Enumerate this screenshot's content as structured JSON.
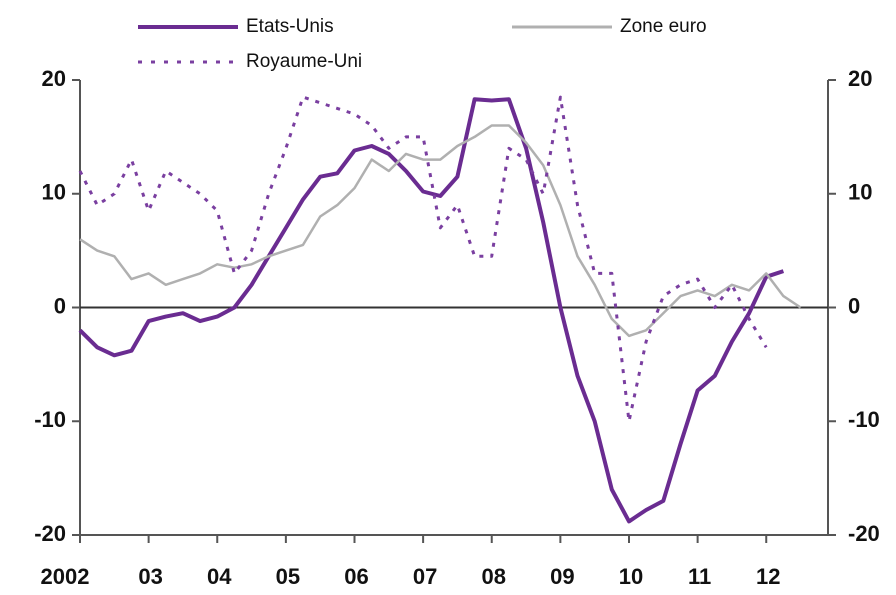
{
  "chart_data": {
    "type": "line",
    "xlim": [
      2002,
      2012.9
    ],
    "xticks": [
      {
        "value": 2002,
        "label": "2002"
      },
      {
        "value": 2003,
        "label": "03"
      },
      {
        "value": 2004,
        "label": "04"
      },
      {
        "value": 2005,
        "label": "05"
      },
      {
        "value": 2006,
        "label": "06"
      },
      {
        "value": 2007,
        "label": "07"
      },
      {
        "value": 2008,
        "label": "08"
      },
      {
        "value": 2009,
        "label": "09"
      },
      {
        "value": 2010,
        "label": "10"
      },
      {
        "value": 2011,
        "label": "11"
      },
      {
        "value": 2012,
        "label": "12"
      }
    ],
    "ylim": [
      -20,
      20
    ],
    "yticks": [
      -20,
      -10,
      0,
      10,
      20
    ],
    "y2lim": [
      -20,
      20
    ],
    "y2ticks": [
      -20,
      -10,
      0,
      10,
      20
    ],
    "series": [
      {
        "name": "Etats-Unis",
        "color": "#6a2c91",
        "style": "solid",
        "x": [
          2002,
          2002.25,
          2002.5,
          2002.75,
          2003,
          2003.25,
          2003.5,
          2003.75,
          2004,
          2004.25,
          2004.5,
          2004.75,
          2005,
          2005.25,
          2005.5,
          2005.75,
          2006,
          2006.25,
          2006.5,
          2006.75,
          2007,
          2007.25,
          2007.5,
          2007.75,
          2008,
          2008.25,
          2008.5,
          2008.75,
          2009,
          2009.25,
          2009.5,
          2009.75,
          2010,
          2010.25,
          2010.5,
          2010.75,
          2011,
          2011.25,
          2011.5,
          2011.75,
          2012,
          2012.25
        ],
        "values": [
          -2,
          -3.5,
          -4.2,
          -3.8,
          -1.2,
          -0.8,
          -0.5,
          -1.2,
          -0.8,
          0,
          2,
          4.5,
          7,
          9.5,
          11.5,
          11.8,
          13.8,
          14.2,
          13.5,
          12,
          10.2,
          9.8,
          11.5,
          18.3,
          18.2,
          18.3,
          14,
          7.5,
          0,
          -6,
          -10,
          -16,
          -18.8,
          -17.8,
          -17,
          -12,
          -7.3,
          -6,
          -3,
          -0.5,
          2.7,
          3.2
        ]
      },
      {
        "name": "Zone euro",
        "color": "#b0b0b0",
        "style": "solid",
        "x": [
          2002,
          2002.25,
          2002.5,
          2002.75,
          2003,
          2003.25,
          2003.5,
          2003.75,
          2004,
          2004.25,
          2004.5,
          2004.75,
          2005,
          2005.25,
          2005.5,
          2005.75,
          2006,
          2006.25,
          2006.5,
          2006.75,
          2007,
          2007.25,
          2007.5,
          2007.75,
          2008,
          2008.25,
          2008.5,
          2008.75,
          2009,
          2009.25,
          2009.5,
          2009.75,
          2010,
          2010.25,
          2010.5,
          2010.75,
          2011,
          2011.25,
          2011.5,
          2011.75,
          2012,
          2012.25,
          2012.5
        ],
        "values": [
          6,
          5,
          4.5,
          2.5,
          3,
          2,
          2.5,
          3,
          3.8,
          3.5,
          3.8,
          4.5,
          5,
          5.5,
          8,
          9,
          10.5,
          13,
          12,
          13.5,
          13,
          13,
          14.2,
          15,
          16,
          16,
          14.5,
          12.5,
          9,
          4.5,
          2,
          -1,
          -2.5,
          -2,
          -0.5,
          1,
          1.5,
          1,
          2,
          1.5,
          3,
          1,
          0
        ]
      },
      {
        "name": "Royaume-Uni",
        "color": "#7a3fa0",
        "style": "dotted",
        "x": [
          2002,
          2002.25,
          2002.5,
          2002.75,
          2003,
          2003.25,
          2003.5,
          2003.75,
          2004,
          2004.25,
          2004.5,
          2004.75,
          2005,
          2005.25,
          2005.5,
          2005.75,
          2006,
          2006.25,
          2006.5,
          2006.75,
          2007,
          2007.25,
          2007.5,
          2007.75,
          2008,
          2008.25,
          2008.5,
          2008.75,
          2009,
          2009.25,
          2009.5,
          2009.75,
          2010,
          2010.25,
          2010.5,
          2010.75,
          2011,
          2011.25,
          2011.5,
          2011.75,
          2012
        ],
        "values": [
          12,
          9,
          10,
          13,
          8.5,
          12,
          11,
          10,
          8.5,
          3,
          5,
          10,
          14,
          18.5,
          18,
          17.5,
          17,
          16,
          14,
          15,
          15,
          7,
          9,
          4.5,
          4.5,
          14,
          13,
          10,
          18.5,
          9,
          3,
          3,
          -10,
          -3,
          1,
          2,
          2.5,
          0,
          2,
          -1,
          -3.5
        ]
      }
    ]
  }
}
